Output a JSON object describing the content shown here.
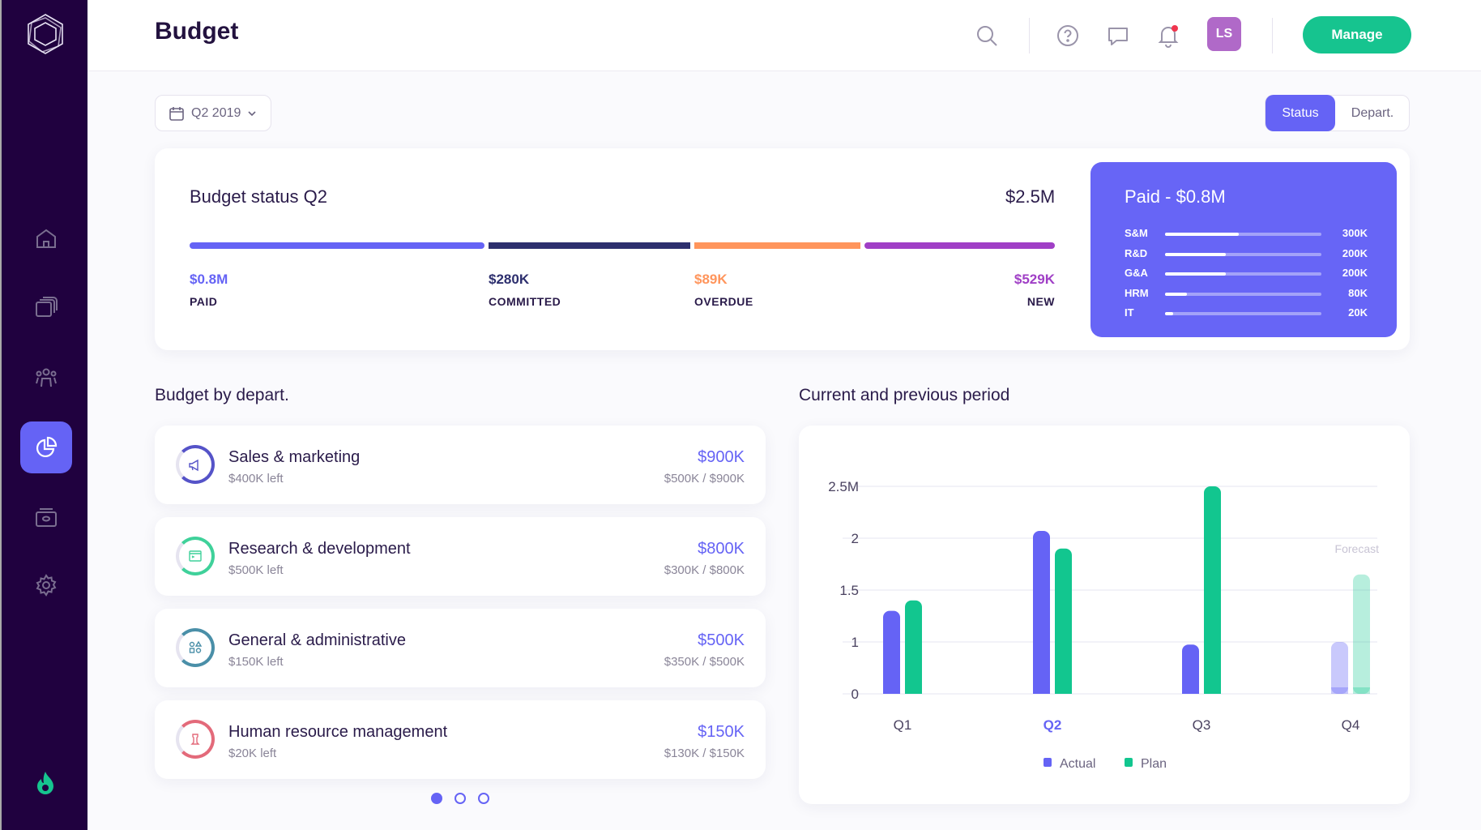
{
  "header": {
    "title": "Budget",
    "avatar_initials": "LS",
    "manage_label": "Manage",
    "icons": [
      "search-icon",
      "help-icon",
      "chat-icon",
      "bell-icon"
    ]
  },
  "sidebar": {
    "items": [
      "home",
      "documents",
      "team",
      "budget",
      "wallet",
      "settings"
    ],
    "active": "budget"
  },
  "filters": {
    "period": "Q2 2019",
    "toggle": [
      "Status",
      "Depart."
    ],
    "active_toggle": "Status"
  },
  "status": {
    "title": "Budget status Q2",
    "total": "$2.5M",
    "segments": [
      {
        "value": "$0.8M",
        "label": "PAID",
        "color": "#6563f5"
      },
      {
        "value": "$280K",
        "label": "COMMITTED",
        "color": "#2d2f6e"
      },
      {
        "value": "$89K",
        "label": "OVERDUE",
        "color": "#ff955c"
      },
      {
        "value": "$529K",
        "label": "NEW",
        "color": "#a03fc6"
      }
    ],
    "paid": {
      "title": "Paid - $0.8M",
      "rows": [
        {
          "label": "S&M",
          "value": "300K",
          "fill": 0.47
        },
        {
          "label": "R&D",
          "value": "200K",
          "fill": 0.39
        },
        {
          "label": "G&A",
          "value": "200K",
          "fill": 0.39
        },
        {
          "label": "HRM",
          "value": "80K",
          "fill": 0.14
        },
        {
          "label": "IT",
          "value": "20K",
          "fill": 0.05
        }
      ]
    }
  },
  "departments": {
    "title": "Budget by depart.",
    "items": [
      {
        "name": "Sales & marketing",
        "left": "$400K left",
        "amount": "$900K",
        "fraction": "$500K / $900K",
        "color": "#5553c8"
      },
      {
        "name": "Research & development",
        "left": "$500K left",
        "amount": "$800K",
        "fraction": "$300K / $800K",
        "color": "#3fd19a"
      },
      {
        "name": "General & administrative",
        "left": "$150K left",
        "amount": "$500K",
        "fraction": "$350K / $500K",
        "color": "#4a8fa8"
      },
      {
        "name": "Human resource management",
        "left": "$20K left",
        "amount": "$150K",
        "fraction": "$130K / $150K",
        "color": "#e36a7a"
      }
    ],
    "pages": 3,
    "current_page": 1
  },
  "chart_data": {
    "type": "bar",
    "title": "Current and previous period",
    "categories": [
      "Q1",
      "Q2",
      "Q3",
      "Q4"
    ],
    "highlight_category": "Q2",
    "y_ticks": [
      "0",
      "1",
      "1.5",
      "2",
      "2.5M"
    ],
    "y_tick_values": [
      0,
      1,
      1.5,
      2,
      2.5
    ],
    "series": [
      {
        "name": "Actual",
        "values": [
          1.3,
          2.07,
          0.95,
          1.0
        ],
        "color": "#6563f5"
      },
      {
        "name": "Plan",
        "values": [
          1.4,
          1.9,
          2.5,
          1.65
        ],
        "color": "#12c68f"
      }
    ],
    "annotation": "Forecast",
    "forecast_category": "Q4",
    "legend": "bottom",
    "grid": true
  }
}
